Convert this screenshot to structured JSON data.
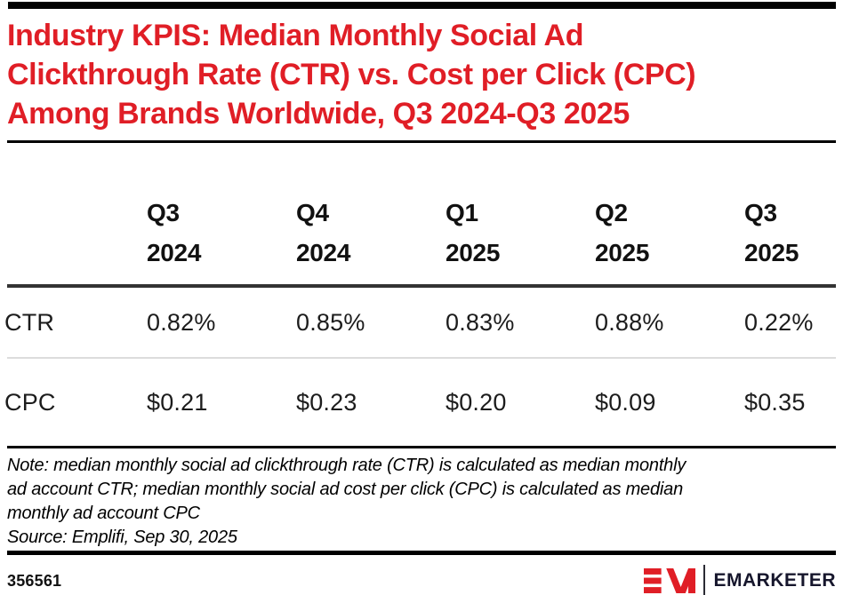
{
  "title": {
    "text": "Industry KPIS: Median Monthly Social Ad Clickthrough Rate (CTR) vs. Cost per Click (CPC) Among Brands Worldwide, Q3 2024-Q3 2025",
    "lines": [
      "Industry KPIS: Median Monthly Social Ad",
      "Clickthrough Rate (CTR) vs. Cost per Click (CPC)",
      "Among Brands Worldwide, Q3 2024-Q3 2025"
    ]
  },
  "chart_data": {
    "type": "table",
    "title": "Industry KPIS: Median Monthly Social Ad Clickthrough Rate (CTR) vs. Cost per Click (CPC) Among Brands Worldwide, Q3 2024-Q3 2025",
    "categories": [
      "Q3 2024",
      "Q4 2024",
      "Q1 2025",
      "Q2 2025",
      "Q3 2025"
    ],
    "header_lines": [
      [
        "Q3",
        "2024"
      ],
      [
        "Q4",
        "2024"
      ],
      [
        "Q1",
        "2025"
      ],
      [
        "Q2",
        "2025"
      ],
      [
        "Q3",
        "2025"
      ]
    ],
    "series": [
      {
        "name": "CTR",
        "values": [
          "0.82%",
          "0.85%",
          "0.83%",
          "0.88%",
          "0.22%"
        ]
      },
      {
        "name": "CPC",
        "values": [
          "$0.21",
          "$0.23",
          "$0.20",
          "$0.09",
          "$0.35"
        ]
      }
    ],
    "legend": false,
    "grid": "horizontal-rules"
  },
  "note": {
    "lines": [
      "Note: median monthly social ad clickthrough rate (CTR) is calculated as median monthly",
      "ad account CTR; median monthly social ad cost per click (CPC) is calculated as median",
      "monthly ad account CPC"
    ],
    "source": "Source: Emplifi, Sep 30, 2025"
  },
  "footer": {
    "chart_id": "356561",
    "brand": "EMARKETER"
  },
  "colors": {
    "accent_red": "#e01e26",
    "wordmark_dark": "#16162c",
    "rule_dark": "#333333",
    "rule_light": "#dcdcdc",
    "text_dark": "#1c1c1c"
  }
}
